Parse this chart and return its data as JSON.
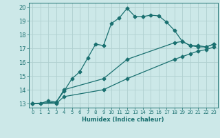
{
  "xlabel": "Humidex (Indice chaleur)",
  "ylabel": "",
  "background_color": "#cce8e8",
  "grid_color": "#b0d0d0",
  "line_color": "#1a7070",
  "xlim": [
    -0.5,
    23.5
  ],
  "ylim": [
    12.7,
    20.3
  ],
  "xticks": [
    0,
    1,
    2,
    3,
    4,
    5,
    6,
    7,
    8,
    9,
    10,
    11,
    12,
    13,
    14,
    15,
    16,
    17,
    18,
    19,
    20,
    21,
    22,
    23
  ],
  "yticks": [
    13,
    14,
    15,
    16,
    17,
    18,
    19,
    20
  ],
  "line1_x": [
    0,
    1,
    2,
    3,
    4,
    5,
    6,
    7,
    8,
    9,
    10,
    11,
    12,
    13,
    14,
    15,
    16,
    17,
    18,
    19,
    20,
    21,
    22,
    23
  ],
  "line1_y": [
    13,
    13,
    13.2,
    13.1,
    13.9,
    14.8,
    15.3,
    16.3,
    17.3,
    17.2,
    18.8,
    19.2,
    19.9,
    19.3,
    19.3,
    19.4,
    19.35,
    18.9,
    18.3,
    17.5,
    17.2,
    17.1,
    17.1,
    17.3
  ],
  "line2_x": [
    0,
    3,
    4,
    9,
    12,
    18,
    19,
    20,
    21,
    22,
    23
  ],
  "line2_y": [
    13,
    13.1,
    14.0,
    14.8,
    16.2,
    17.4,
    17.5,
    17.2,
    17.2,
    17.1,
    17.3
  ],
  "line3_x": [
    0,
    3,
    4,
    9,
    12,
    18,
    19,
    20,
    21,
    22,
    23
  ],
  "line3_y": [
    13,
    13.0,
    13.5,
    14.0,
    14.8,
    16.2,
    16.4,
    16.6,
    16.8,
    16.9,
    17.1
  ],
  "marker_size": 2.5,
  "linewidth": 0.9
}
